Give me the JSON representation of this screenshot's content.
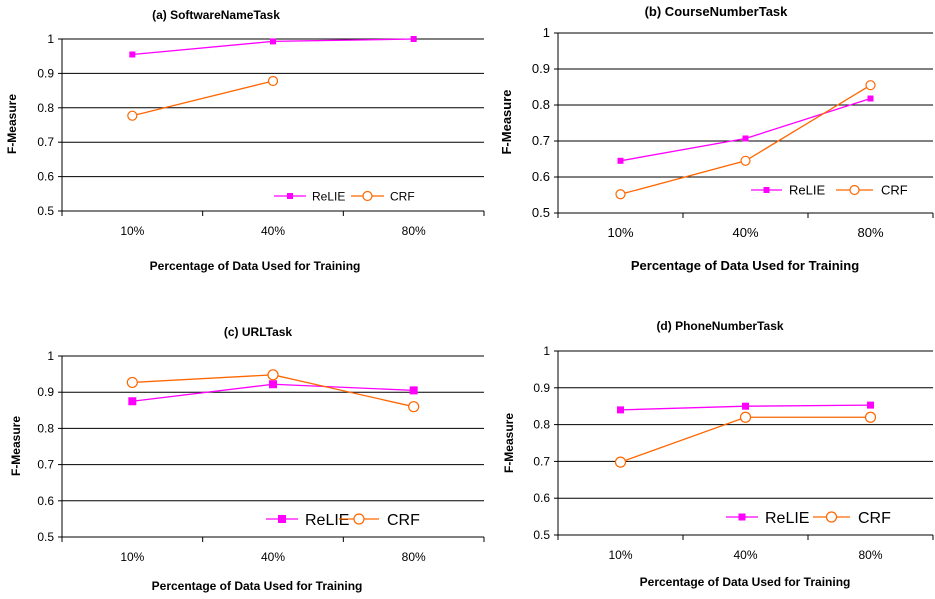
{
  "colors": {
    "relie": "#ff00ff",
    "crf": "#ff6600",
    "gridline": "#000000",
    "plot_background": "#ffffff"
  },
  "chart_data": [
    {
      "type": "line",
      "title": "(a) SoftwareNameTask",
      "xlabel": "Percentage of Data Used for Training",
      "ylabel": "F-Measure",
      "categories": [
        "10%",
        "40%",
        "80%"
      ],
      "ylim": [
        0.5,
        1
      ],
      "yticks": [
        "0.5",
        "0.6",
        "0.7",
        "0.8",
        "0.9",
        "1"
      ],
      "grid": true,
      "legend": "bottom-right",
      "series": [
        {
          "name": "ReLIE",
          "values": [
            0.955,
            0.993,
            1.0
          ],
          "marker": "square"
        },
        {
          "name": "CRF",
          "values": [
            0.777,
            0.878,
            null
          ],
          "marker": "circle"
        }
      ]
    },
    {
      "type": "line",
      "title": "(b) CourseNumberTask",
      "xlabel": "Percentage of Data Used for Training",
      "ylabel": "F-Measure",
      "categories": [
        "10%",
        "40%",
        "80%"
      ],
      "ylim": [
        0.5,
        1
      ],
      "yticks": [
        "0.5",
        "0.6",
        "0.7",
        "0.8",
        "0.9",
        "1"
      ],
      "grid": true,
      "legend": "bottom-right",
      "series": [
        {
          "name": "ReLIE",
          "values": [
            0.645,
            0.707,
            0.818
          ],
          "marker": "square"
        },
        {
          "name": "CRF",
          "values": [
            0.552,
            0.645,
            0.855
          ],
          "marker": "circle"
        }
      ]
    },
    {
      "type": "line",
      "title": "(c) URLTask",
      "xlabel": "Percentage of Data Used for Training",
      "ylabel": "F-Measure",
      "categories": [
        "10%",
        "40%",
        "80%"
      ],
      "ylim": [
        0.5,
        1
      ],
      "yticks": [
        "0.5",
        "0.6",
        "0.7",
        "0.8",
        "0.9",
        "1"
      ],
      "grid": true,
      "legend": "bottom-right",
      "series": [
        {
          "name": "ReLIE",
          "values": [
            0.875,
            0.922,
            0.905
          ],
          "marker": "square"
        },
        {
          "name": "CRF",
          "values": [
            0.927,
            0.948,
            0.86
          ],
          "marker": "circle"
        }
      ]
    },
    {
      "type": "line",
      "title": "(d) PhoneNumberTask",
      "xlabel": "Percentage of Data Used for Training",
      "ylabel": "F-Measure",
      "categories": [
        "10%",
        "40%",
        "80%"
      ],
      "ylim": [
        0.5,
        1
      ],
      "yticks": [
        "0.5",
        "0.6",
        "0.7",
        "0.8",
        "0.9",
        "1"
      ],
      "grid": true,
      "legend": "bottom-right",
      "series": [
        {
          "name": "ReLIE",
          "values": [
            0.84,
            0.85,
            0.853
          ],
          "marker": "square"
        },
        {
          "name": "CRF",
          "values": [
            0.698,
            0.82,
            0.82
          ],
          "marker": "circle"
        }
      ]
    }
  ]
}
